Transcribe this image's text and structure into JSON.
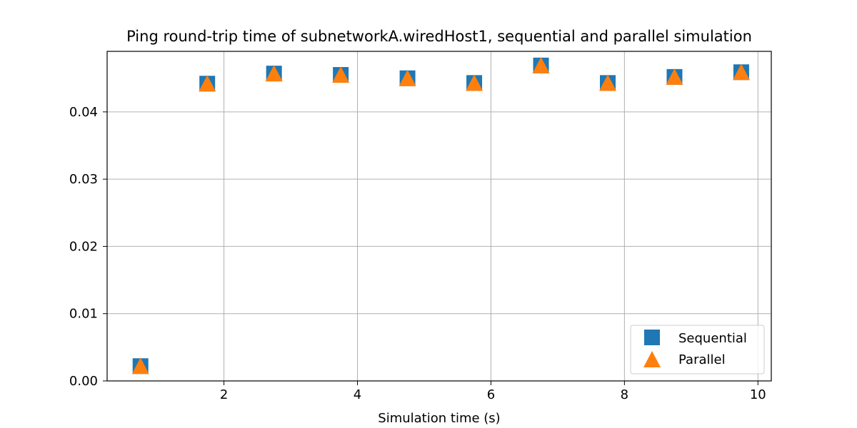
{
  "chart_data": {
    "type": "scatter",
    "title": "Ping round-trip time of subnetworkA.wiredHost1, sequential and parallel simulation",
    "xlabel": "Simulation time (s)",
    "ylabel": "",
    "xlim": [
      0.25,
      10.2
    ],
    "ylim": [
      0.0,
      0.049
    ],
    "xticks": [
      {
        "value": 2,
        "label": "2"
      },
      {
        "value": 4,
        "label": "4"
      },
      {
        "value": 6,
        "label": "6"
      },
      {
        "value": 8,
        "label": "8"
      },
      {
        "value": 10,
        "label": "10"
      }
    ],
    "yticks": [
      {
        "value": 0.0,
        "label": "0.00"
      },
      {
        "value": 0.01,
        "label": "0.01"
      },
      {
        "value": 0.02,
        "label": "0.02"
      },
      {
        "value": 0.03,
        "label": "0.03"
      },
      {
        "value": 0.04,
        "label": "0.04"
      }
    ],
    "grid": true,
    "legend_position": "bottom-right",
    "series": [
      {
        "name": "Sequential",
        "marker": "square",
        "color": "#1f77b4",
        "x": [
          0.75,
          1.75,
          2.75,
          3.75,
          4.75,
          5.75,
          6.75,
          7.75,
          8.75,
          9.75
        ],
        "y": [
          0.0022,
          0.0442,
          0.0457,
          0.0455,
          0.045,
          0.0443,
          0.0469,
          0.0443,
          0.0452,
          0.0459
        ]
      },
      {
        "name": "Parallel",
        "marker": "triangle",
        "color": "#ff7f0e",
        "x": [
          0.75,
          1.75,
          2.75,
          3.75,
          4.75,
          5.75,
          6.75,
          7.75,
          8.75,
          9.75
        ],
        "y": [
          0.0022,
          0.0442,
          0.0457,
          0.0455,
          0.045,
          0.0443,
          0.0469,
          0.0443,
          0.0452,
          0.0459
        ]
      }
    ]
  }
}
